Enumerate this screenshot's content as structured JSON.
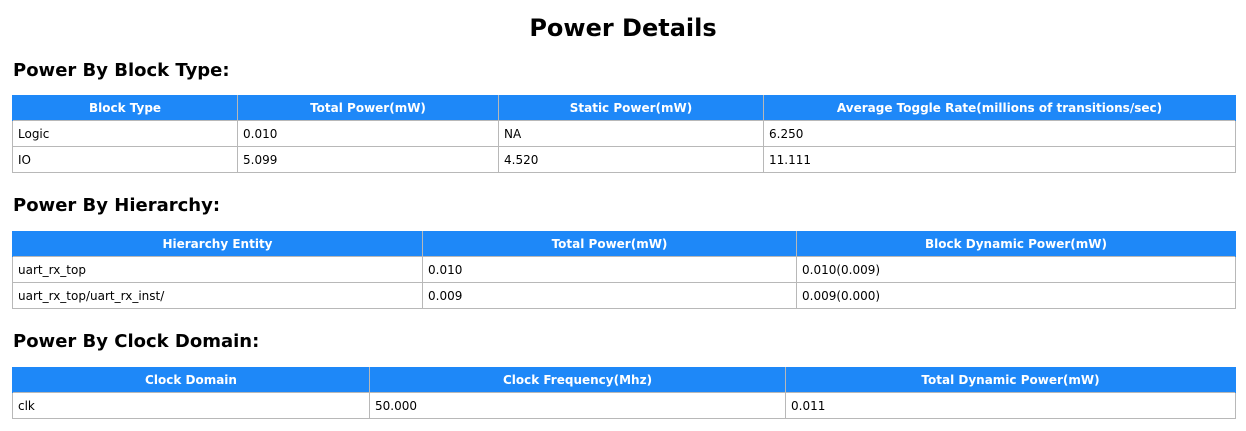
{
  "page_title": "Power Details",
  "sections": [
    {
      "heading": "Power By Block Type:",
      "headers": [
        "Block Type",
        "Total Power(mW)",
        "Static Power(mW)",
        "Average Toggle Rate(millions of transitions/sec)"
      ],
      "rows": [
        [
          "Logic",
          "0.010",
          "NA",
          "6.250"
        ],
        [
          "IO",
          "5.099",
          "4.520",
          "11.111"
        ]
      ]
    },
    {
      "heading": "Power By Hierarchy:",
      "headers": [
        "Hierarchy Entity",
        "Total Power(mW)",
        "Block Dynamic Power(mW)"
      ],
      "rows": [
        [
          "uart_rx_top",
          "0.010",
          "0.010(0.009)"
        ],
        [
          "uart_rx_top/uart_rx_inst/",
          "0.009",
          "0.009(0.000)"
        ]
      ]
    },
    {
      "heading": "Power By Clock Domain:",
      "headers": [
        "Clock Domain",
        "Clock Frequency(Mhz)",
        "Total Dynamic Power(mW)"
      ],
      "rows": [
        [
          "clk",
          "50.000",
          "0.011"
        ]
      ]
    }
  ],
  "colors": {
    "header_bg": "#1e88f8",
    "header_text": "#ffffff",
    "border": "#b8b8b8"
  }
}
